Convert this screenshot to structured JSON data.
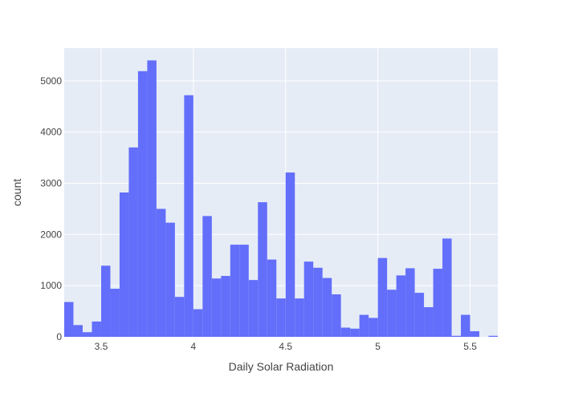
{
  "chart_data": {
    "type": "bar",
    "xlabel": "Daily Solar Radiation",
    "ylabel": "count",
    "bin_width": 0.05,
    "xlim": [
      3.3,
      5.65
    ],
    "ylim": [
      0,
      5640
    ],
    "x_ticks": [
      3.5,
      4,
      4.5,
      5,
      5.5
    ],
    "x_tick_labels": [
      "3.5",
      "4",
      "4.5",
      "5",
      "5.5"
    ],
    "y_ticks": [
      0,
      1000,
      2000,
      3000,
      4000,
      5000
    ],
    "y_tick_labels": [
      "0",
      "1000",
      "2000",
      "3000",
      "4000",
      "5000"
    ],
    "bins": [
      3.3,
      3.35,
      3.4,
      3.45,
      3.5,
      3.55,
      3.6,
      3.65,
      3.7,
      3.75,
      3.8,
      3.85,
      3.9,
      3.95,
      4.0,
      4.05,
      4.1,
      4.15,
      4.2,
      4.25,
      4.3,
      4.35,
      4.4,
      4.45,
      4.5,
      4.55,
      4.6,
      4.65,
      4.7,
      4.75,
      4.8,
      4.85,
      4.9,
      4.95,
      5.0,
      5.05,
      5.1,
      5.15,
      5.2,
      5.25,
      5.3,
      5.35,
      5.4,
      5.45,
      5.5,
      5.55,
      5.6
    ],
    "values": [
      680,
      230,
      90,
      300,
      1390,
      940,
      2820,
      3700,
      5190,
      5400,
      2500,
      2230,
      780,
      4720,
      540,
      2360,
      1140,
      1190,
      1800,
      1800,
      1110,
      2630,
      1510,
      750,
      3210,
      750,
      1470,
      1350,
      1150,
      830,
      180,
      160,
      430,
      370,
      1540,
      920,
      1200,
      1340,
      860,
      580,
      1330,
      1920,
      20,
      430,
      110,
      0,
      20
    ],
    "grid": true,
    "bar_color": "#636efa",
    "plot_bg": "#e5ecf6",
    "grid_color": "#ffffff"
  }
}
